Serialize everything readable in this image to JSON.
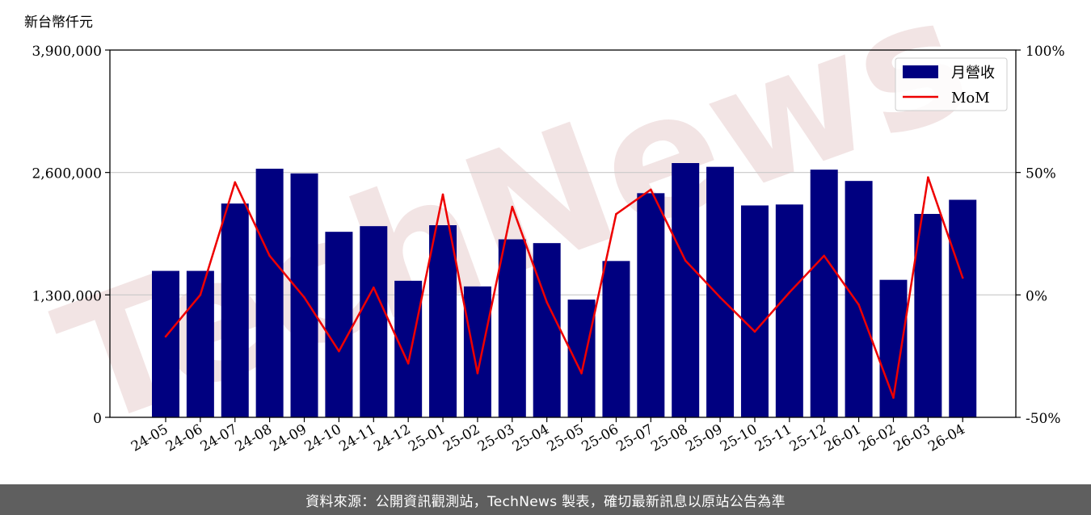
{
  "chart_data": {
    "type": "bar",
    "unit_label": "新台幣仟元",
    "categories": [
      "24-05",
      "24-06",
      "24-07",
      "24-08",
      "24-09",
      "24-10",
      "24-11",
      "24-12",
      "25-01",
      "25-02",
      "25-03",
      "25-04",
      "25-05",
      "25-06",
      "25-07",
      "25-08",
      "25-09",
      "25-10",
      "25-11",
      "25-12",
      "26-01",
      "26-02",
      "26-03",
      "26-04"
    ],
    "series": [
      {
        "name": "月營收",
        "kind": "bar",
        "axis": "left",
        "color": "#000080",
        "values": [
          1555000,
          1555000,
          2270000,
          2640000,
          2590000,
          1970000,
          2030000,
          1450000,
          2040000,
          1390000,
          1890000,
          1850000,
          1250000,
          1660000,
          2380000,
          2700000,
          2660000,
          2250000,
          2260000,
          2630000,
          2510000,
          1460000,
          2160000,
          2310000
        ]
      },
      {
        "name": "MoM",
        "kind": "line",
        "axis": "right",
        "color": "#ee0000",
        "values": [
          -17,
          0,
          46,
          16,
          -1,
          -23,
          3,
          -28,
          41,
          -32,
          36,
          -3,
          -32,
          33,
          43,
          14,
          -1,
          -15,
          1,
          16,
          -4,
          -42,
          48,
          7
        ]
      }
    ],
    "y_left": {
      "min": 0,
      "max": 3900000,
      "ticks": [
        0,
        1300000,
        2600000,
        3900000
      ],
      "tick_labels": [
        "0",
        "1,300,000",
        "2,600,000",
        "3,900,000"
      ]
    },
    "y_right": {
      "min": -50,
      "max": 100,
      "ticks": [
        -50,
        0,
        50,
        100
      ],
      "tick_labels": [
        "-50%",
        "0%",
        "50%",
        "100%"
      ]
    },
    "grid": "horizontal",
    "legend": "top-right"
  },
  "watermark": "TechNews",
  "footer": {
    "text": "資料來源：公開資訊觀測站，TechNews 製表，確切最新訊息以原站公告為準"
  }
}
